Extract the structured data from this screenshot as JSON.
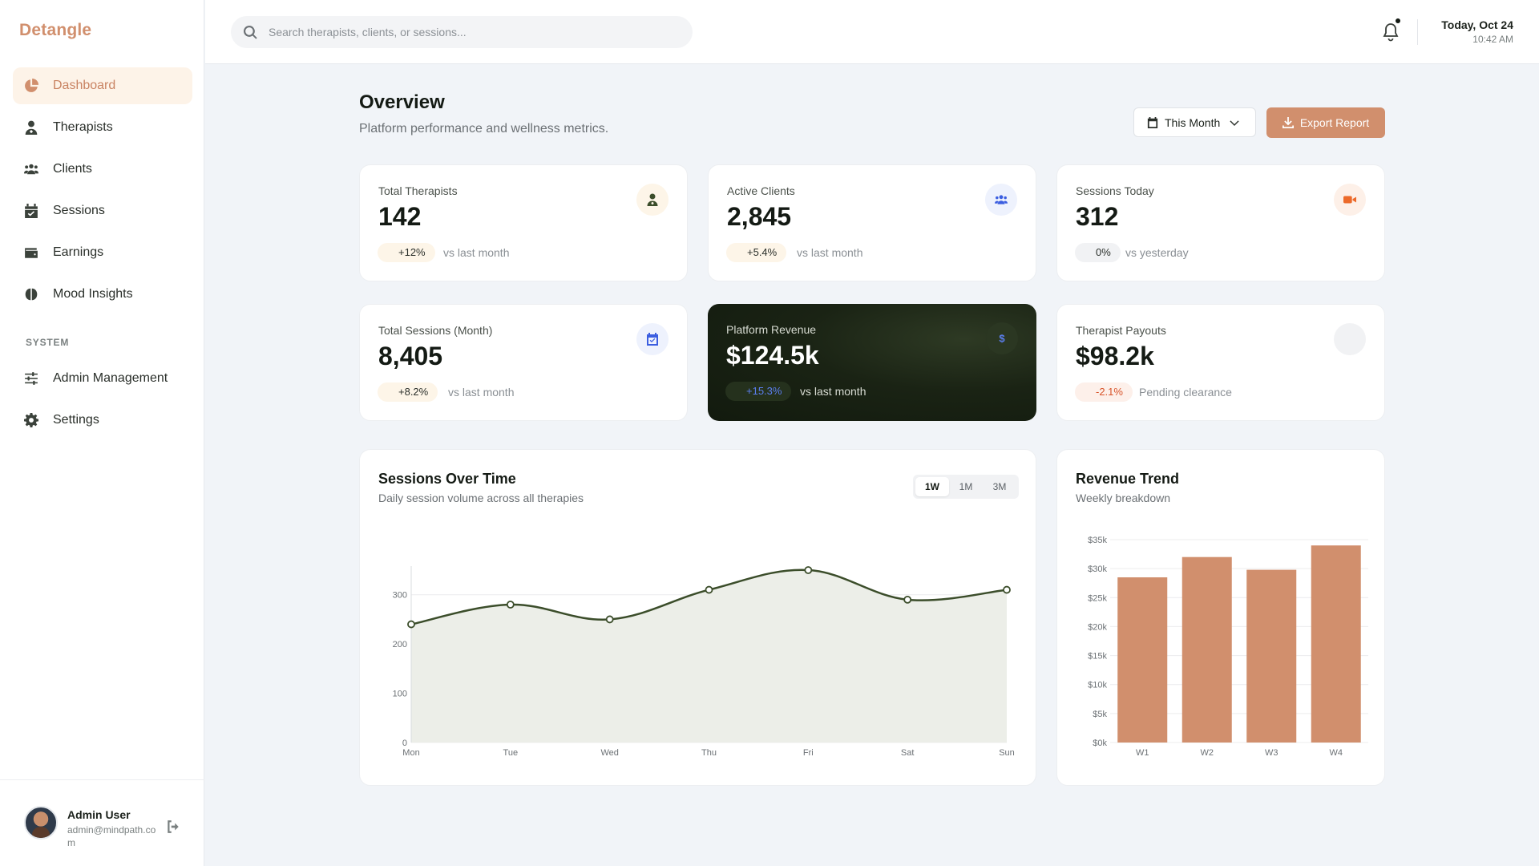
{
  "brand": {
    "name": "Detangle",
    "accent": "#d18f6d"
  },
  "sidebar": {
    "items": [
      {
        "label": "Dashboard",
        "icon": "pie-chart-icon",
        "active": true
      },
      {
        "label": "Therapists",
        "icon": "user-doctor-icon"
      },
      {
        "label": "Clients",
        "icon": "users-icon"
      },
      {
        "label": "Sessions",
        "icon": "calendar-check-icon"
      },
      {
        "label": "Earnings",
        "icon": "wallet-icon"
      },
      {
        "label": "Mood Insights",
        "icon": "brain-icon"
      }
    ],
    "section_label": "SYSTEM",
    "system_items": [
      {
        "label": "Admin Management",
        "icon": "sliders-icon"
      },
      {
        "label": "Settings",
        "icon": "gear-icon"
      }
    ],
    "user": {
      "name": "Admin User",
      "email": "admin@mindpath.com"
    }
  },
  "topbar": {
    "search_placeholder": "Search therapists, clients, or sessions...",
    "date": "Today, Oct 24",
    "time": "10:42 AM"
  },
  "page": {
    "title": "Overview",
    "subtitle": "Platform performance and wellness metrics.",
    "period_label": "This Month",
    "export_label": "Export Report"
  },
  "stats": [
    {
      "label": "Total Therapists",
      "value": "142",
      "change": "+12%",
      "note": "vs last month",
      "icon": "user-doctor-icon"
    },
    {
      "label": "Active Clients",
      "value": "2,845",
      "change": "+5.4%",
      "note": "vs last month",
      "icon": "users-icon"
    },
    {
      "label": "Sessions Today",
      "value": "312",
      "change": "0%",
      "note": "vs yesterday",
      "icon": "video-icon"
    },
    {
      "label": "Total Sessions (Month)",
      "value": "8,405",
      "change": "+8.2%",
      "note": "vs last month",
      "icon": "calendar-check-icon"
    },
    {
      "label": "Platform Revenue",
      "value": "$124.5k",
      "change": "+15.3%",
      "note": "vs last month",
      "icon": "dollar-icon"
    },
    {
      "label": "Therapist Payouts",
      "value": "$98.2k",
      "change": "-2.1%",
      "note": "Pending clearance",
      "icon": "circle-icon"
    }
  ],
  "sessions_chart": {
    "title": "Sessions Over Time",
    "subtitle": "Daily session volume across all therapies",
    "ranges": [
      "1W",
      "1M",
      "3M"
    ],
    "selected_range": "1W"
  },
  "revenue_chart": {
    "title": "Revenue Trend",
    "subtitle": "Weekly breakdown"
  },
  "chart_data": [
    {
      "type": "area",
      "title": "Sessions Over Time",
      "categories": [
        "Mon",
        "Tue",
        "Wed",
        "Thu",
        "Fri",
        "Sat",
        "Sun"
      ],
      "values": [
        240,
        280,
        250,
        310,
        350,
        290,
        310
      ],
      "ylim": [
        0,
        350
      ],
      "yticks": [
        0,
        100,
        200,
        300
      ],
      "color": "#3b4d2a",
      "grid": true
    },
    {
      "type": "bar",
      "title": "Revenue Trend",
      "categories": [
        "W1",
        "W2",
        "W3",
        "W4"
      ],
      "values": [
        28500,
        32000,
        29800,
        34000
      ],
      "ylim": [
        0,
        35000
      ],
      "ytick_labels": [
        "$0k",
        "$5k",
        "$10k",
        "$15k",
        "$20k",
        "$25k",
        "$30k",
        "$35k"
      ],
      "color": "#d18f6d",
      "grid": true
    }
  ]
}
